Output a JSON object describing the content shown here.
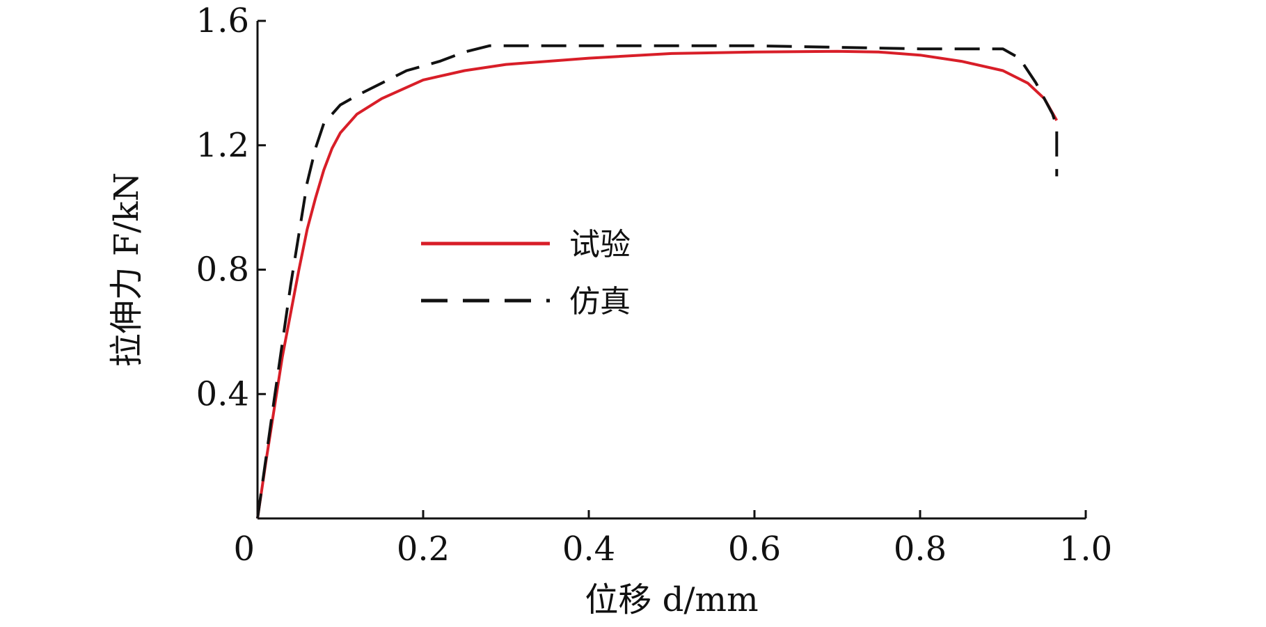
{
  "chart_data": {
    "type": "line",
    "xlabel": "位移 d/mm",
    "ylabel": "拉伸力 F/kN",
    "xlim": [
      0,
      1.0
    ],
    "ylim": [
      0,
      1.6
    ],
    "x_ticks": [
      {
        "value": 0,
        "label": "0"
      },
      {
        "value": 0.2,
        "label": "0.2"
      },
      {
        "value": 0.4,
        "label": "0.4"
      },
      {
        "value": 0.6,
        "label": "0.6"
      },
      {
        "value": 0.8,
        "label": "0.8"
      },
      {
        "value": 1.0,
        "label": "1.0"
      }
    ],
    "y_ticks": [
      {
        "value": 0.4,
        "label": "0.4"
      },
      {
        "value": 0.8,
        "label": "0.8"
      },
      {
        "value": 1.2,
        "label": "1.2"
      },
      {
        "value": 1.6,
        "label": "1.6"
      }
    ],
    "grid": false,
    "legend_position": "center-left",
    "series": [
      {
        "name": "试验",
        "color": "#d81e28",
        "style": "solid",
        "x": [
          0,
          0.01,
          0.02,
          0.03,
          0.04,
          0.05,
          0.06,
          0.07,
          0.08,
          0.09,
          0.1,
          0.12,
          0.15,
          0.2,
          0.25,
          0.3,
          0.4,
          0.5,
          0.6,
          0.7,
          0.75,
          0.8,
          0.85,
          0.9,
          0.93,
          0.95,
          0.965
        ],
        "y": [
          0,
          0.18,
          0.35,
          0.52,
          0.66,
          0.8,
          0.93,
          1.03,
          1.12,
          1.19,
          1.24,
          1.3,
          1.35,
          1.41,
          1.44,
          1.46,
          1.48,
          1.495,
          1.5,
          1.502,
          1.5,
          1.49,
          1.47,
          1.44,
          1.4,
          1.35,
          1.28
        ]
      },
      {
        "name": "仿真",
        "color": "#111111",
        "style": "dashed",
        "x": [
          0,
          0.02,
          0.04,
          0.06,
          0.07,
          0.08,
          0.1,
          0.12,
          0.15,
          0.18,
          0.22,
          0.25,
          0.28,
          0.4,
          0.6,
          0.8,
          0.9,
          0.92,
          0.94,
          0.96,
          0.965,
          0.965
        ],
        "y": [
          0,
          0.38,
          0.75,
          1.08,
          1.19,
          1.27,
          1.33,
          1.36,
          1.4,
          1.44,
          1.47,
          1.5,
          1.52,
          1.52,
          1.52,
          1.51,
          1.51,
          1.48,
          1.4,
          1.3,
          1.26,
          1.1
        ]
      }
    ]
  }
}
